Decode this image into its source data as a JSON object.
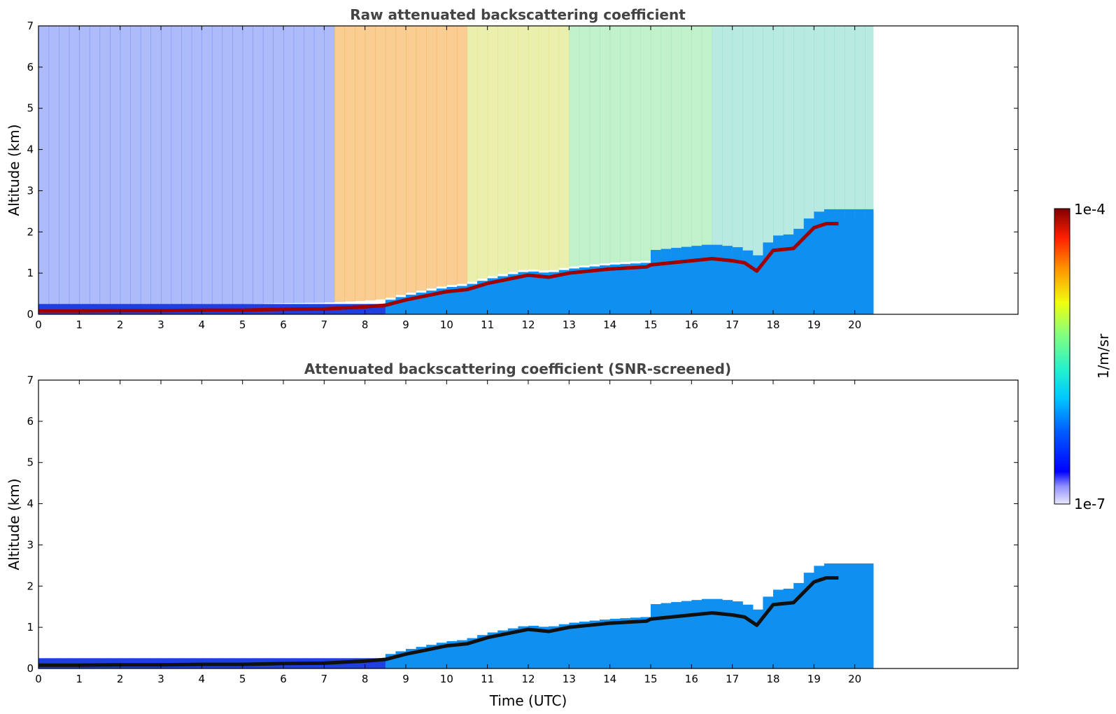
{
  "colorbar": {
    "top_label": "1e-4",
    "bottom_label": "1e-7",
    "unit_label": "1/m/sr"
  },
  "colors": {
    "title": "#444444",
    "profile_line_top": "#a00000",
    "profile_line_bottom": "#101010"
  },
  "chart_data": [
    {
      "type": "heatmap",
      "title": "Raw attenuated backscattering coefficient",
      "xlabel": "",
      "ylabel": "Altitude (km)",
      "xlim": [
        0,
        24
      ],
      "ylim": [
        0,
        7
      ],
      "x_ticks": [
        0,
        1,
        2,
        3,
        4,
        5,
        6,
        7,
        8,
        9,
        10,
        11,
        12,
        13,
        14,
        15,
        16,
        17,
        18,
        19,
        20
      ],
      "y_ticks": [
        0,
        1,
        2,
        3,
        4,
        5,
        6,
        7
      ],
      "data_extent_x": [
        0,
        20.45
      ],
      "grid": false,
      "colorscale": "jet (log)",
      "color_range": [
        "1e-7",
        "1e-4"
      ],
      "cloud_base_km": {
        "x": [
          0,
          1,
          2,
          3,
          4,
          5,
          6,
          7,
          8,
          8.5,
          9,
          9.5,
          10,
          10.5,
          11,
          11.5,
          12,
          12.5,
          13,
          13.5,
          14,
          14.9,
          15,
          16,
          16.5,
          17,
          17.3,
          17.6,
          18,
          18.5,
          19,
          19.3,
          19.6
        ],
        "y": [
          0.08,
          0.08,
          0.09,
          0.09,
          0.1,
          0.1,
          0.12,
          0.13,
          0.18,
          0.22,
          0.35,
          0.45,
          0.55,
          0.6,
          0.75,
          0.85,
          0.95,
          0.9,
          1.0,
          1.05,
          1.1,
          1.15,
          1.2,
          1.3,
          1.35,
          1.3,
          1.25,
          1.05,
          1.55,
          1.6,
          2.1,
          2.2,
          2.2
        ]
      }
    },
    {
      "type": "heatmap",
      "title": "Attenuated backscattering coefficient (SNR-screened)",
      "xlabel": "Time (UTC)",
      "ylabel": "Altitude (km)",
      "xlim": [
        0,
        24
      ],
      "ylim": [
        0,
        7
      ],
      "x_ticks": [
        0,
        1,
        2,
        3,
        4,
        5,
        6,
        7,
        8,
        9,
        10,
        11,
        12,
        13,
        14,
        15,
        16,
        17,
        18,
        19,
        20
      ],
      "y_ticks": [
        0,
        1,
        2,
        3,
        4,
        5,
        6,
        7
      ],
      "data_extent_x": [
        0,
        20.45
      ],
      "grid": false,
      "colorscale": "jet (log)",
      "color_range": [
        "1e-7",
        "1e-4"
      ],
      "cloud_base_km": {
        "x": [
          0,
          1,
          2,
          3,
          4,
          5,
          6,
          7,
          8,
          8.5,
          9,
          9.5,
          10,
          10.5,
          11,
          11.5,
          12,
          12.5,
          13,
          13.5,
          14,
          14.9,
          15,
          16,
          16.5,
          17,
          17.3,
          17.6,
          18,
          18.5,
          19,
          19.3,
          19.6
        ],
        "y": [
          0.08,
          0.08,
          0.09,
          0.09,
          0.1,
          0.1,
          0.12,
          0.13,
          0.18,
          0.22,
          0.35,
          0.45,
          0.55,
          0.6,
          0.75,
          0.85,
          0.95,
          0.9,
          1.0,
          1.05,
          1.1,
          1.15,
          1.2,
          1.3,
          1.35,
          1.3,
          1.25,
          1.05,
          1.55,
          1.6,
          2.1,
          2.2,
          2.2
        ]
      }
    }
  ]
}
